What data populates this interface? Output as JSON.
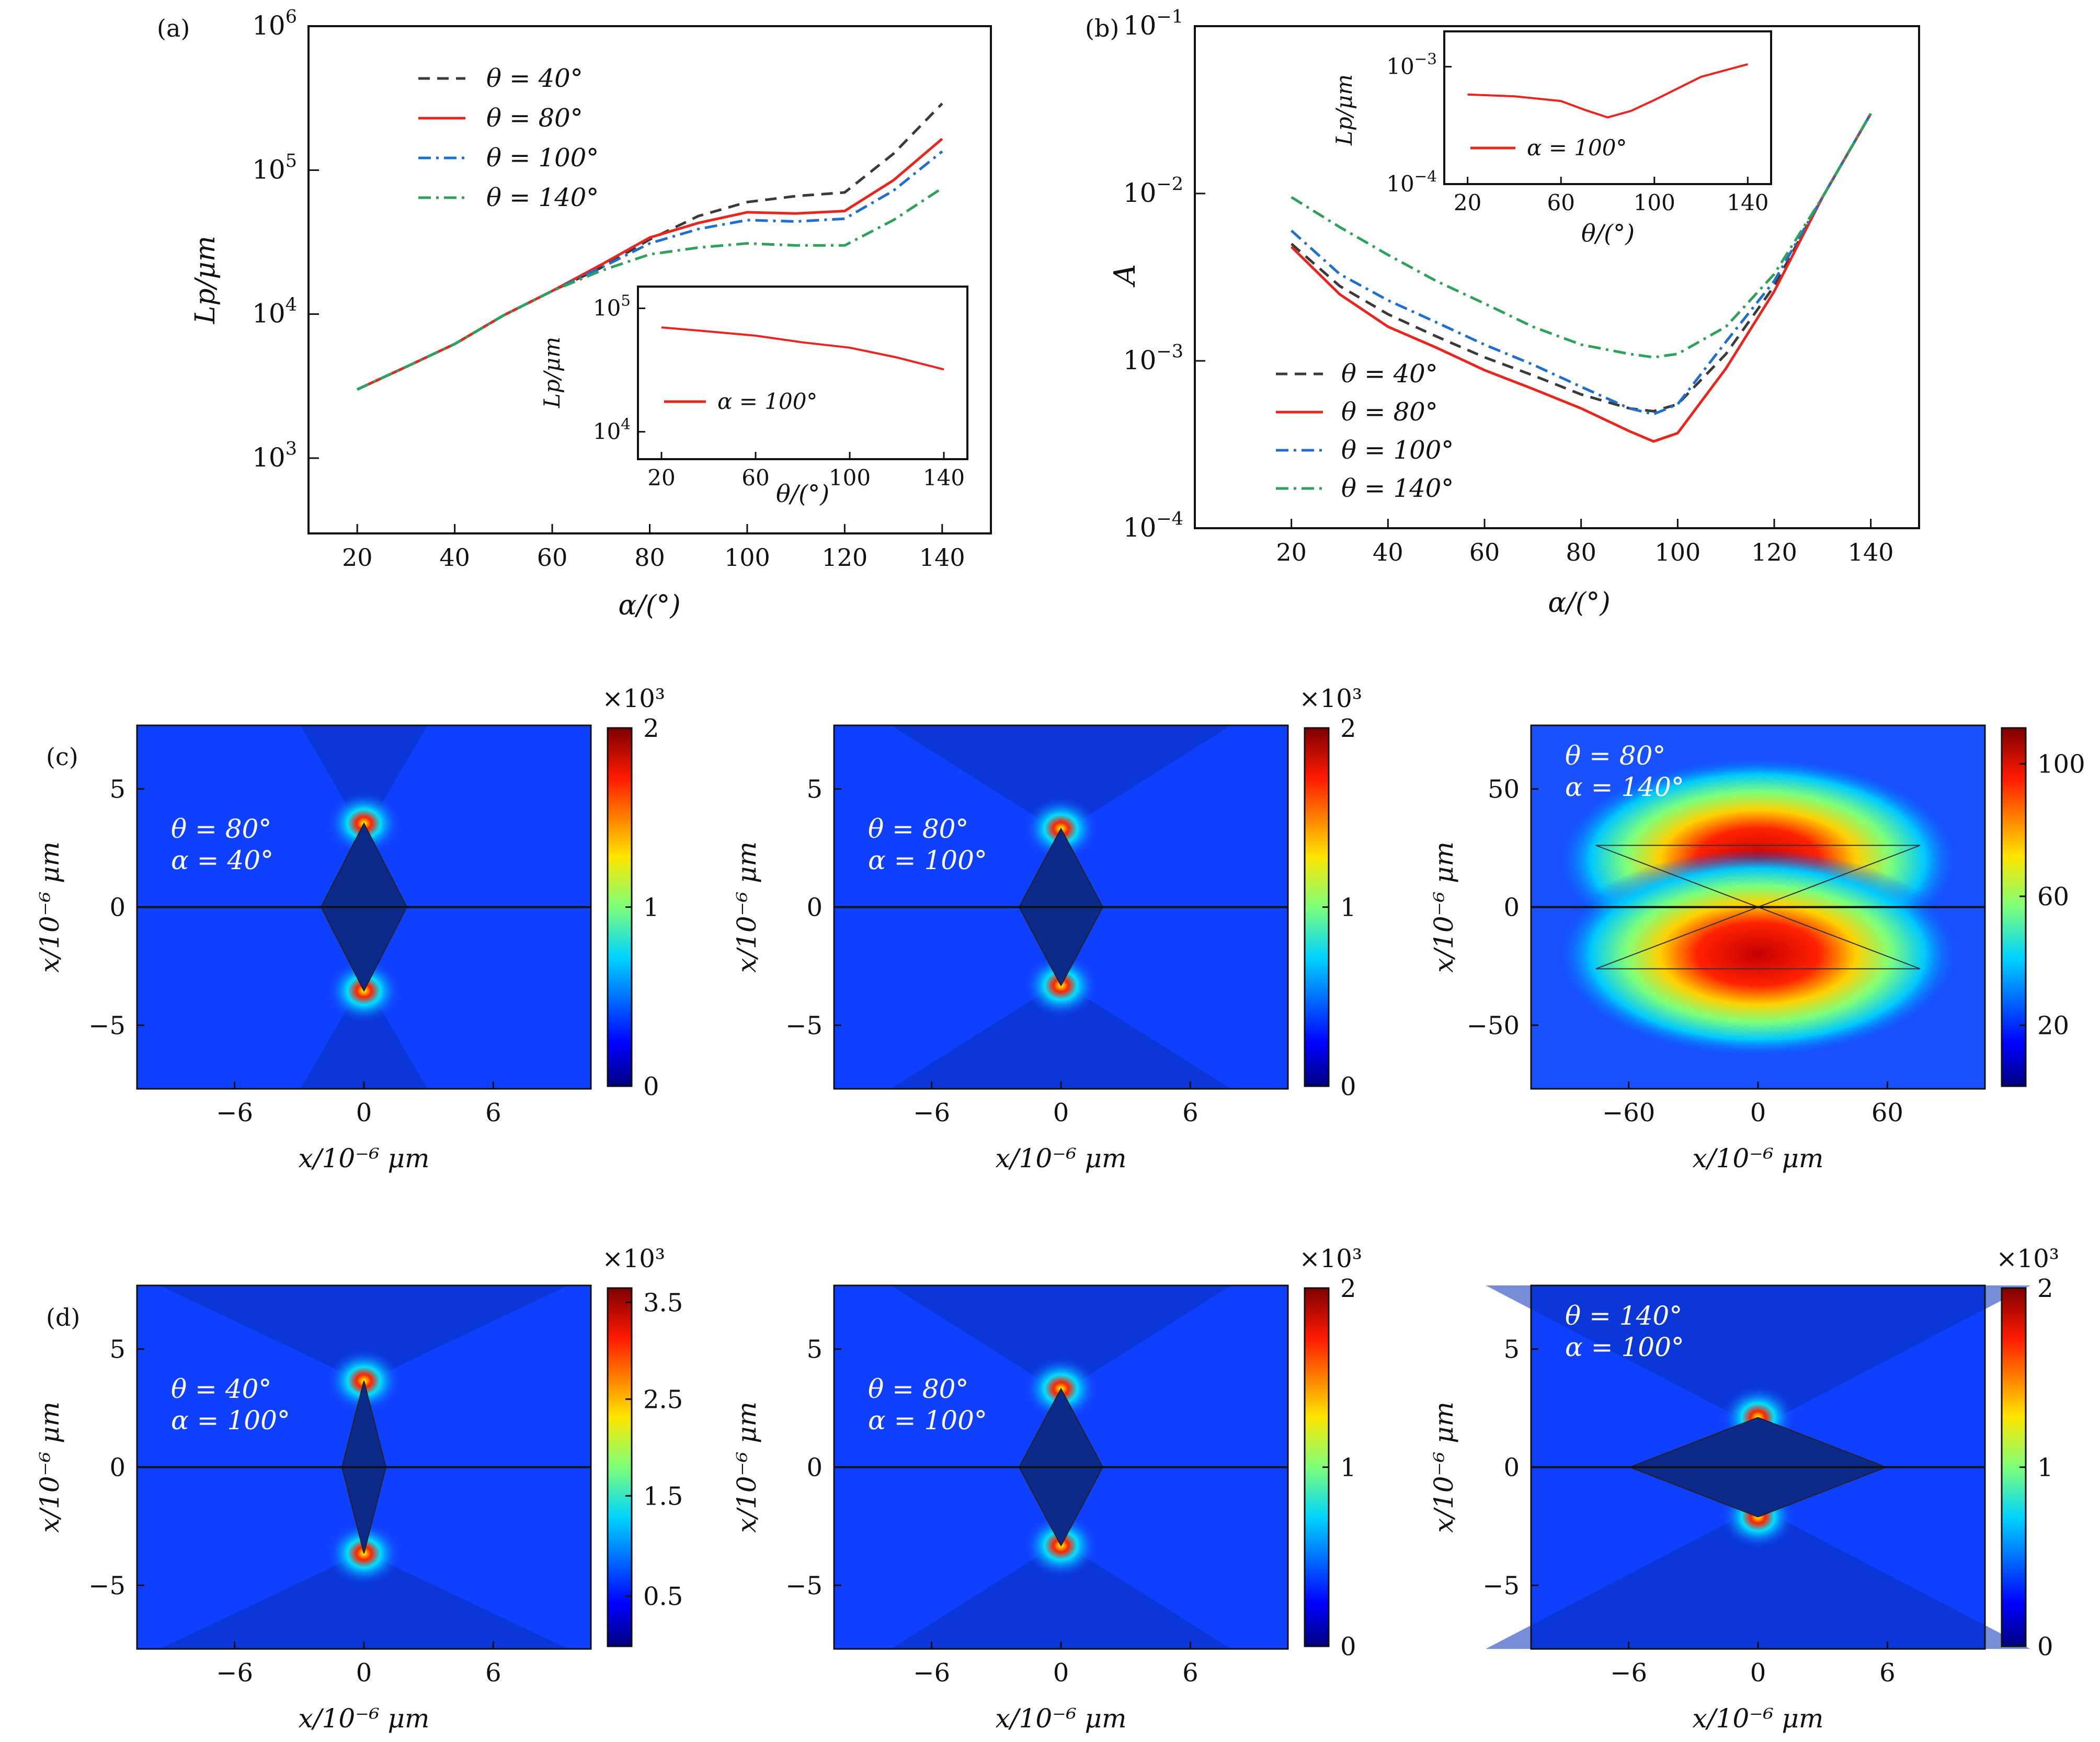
{
  "colors": {
    "theta40": "#3a3a3a",
    "theta80": "#e8261e",
    "theta100": "#1f6fd1",
    "theta140": "#2ea15b",
    "bg_field": "#1040ff",
    "dark_region": "#0a2fb8",
    "hot": "#ff2200"
  },
  "panel_a": {
    "label": "(a)",
    "xlabel": "α/(°)",
    "ylabel": "Lp/μm",
    "xticks": [
      "20",
      "40",
      "60",
      "80",
      "100",
      "120",
      "140"
    ],
    "yticks": [
      "10^3",
      "10^4",
      "10^5",
      "10^6"
    ],
    "legend": [
      "θ = 40°",
      "θ = 80°",
      "θ = 100°",
      "θ = 140°"
    ],
    "inset": {
      "xlabel": "θ/(°)",
      "ylabel": "Lp/μm",
      "xticks": [
        "20",
        "60",
        "100",
        "140"
      ],
      "yticks": [
        "10^4",
        "10^5"
      ],
      "legend": "α = 100°"
    }
  },
  "panel_b": {
    "label": "(b)",
    "xlabel": "α/(°)",
    "ylabel": "A",
    "xticks": [
      "20",
      "40",
      "60",
      "80",
      "100",
      "120",
      "140"
    ],
    "yticks": [
      "10^-4",
      "10^-3",
      "10^-2",
      "10^-1"
    ],
    "legend": [
      "θ = 40°",
      "θ = 80°",
      "θ = 100°",
      "θ = 140°"
    ],
    "inset": {
      "xlabel": "θ/(°)",
      "ylabel": "Lp/μm",
      "xticks": [
        "20",
        "60",
        "100",
        "140"
      ],
      "yticks": [
        "10^-4",
        "10^-3"
      ],
      "legend": "α = 100°"
    }
  },
  "maps": {
    "c_label": "(c)",
    "d_label": "(d)",
    "xlabel": "x/10⁻⁶ μm",
    "ylabel": "x/10⁻⁶ μm",
    "multiplier": "×10³",
    "c1": {
      "line1": "θ = 80°",
      "line2": "α = 40°",
      "xticks": [
        "−6",
        "0",
        "6"
      ],
      "yticks": [
        "5",
        "0",
        "−5"
      ],
      "cticks": [
        "2",
        "1",
        "0"
      ]
    },
    "c2": {
      "line1": "θ = 80°",
      "line2": "α = 100°",
      "xticks": [
        "−6",
        "0",
        "6"
      ],
      "yticks": [
        "5",
        "0",
        "−5"
      ],
      "cticks": [
        "2",
        "1",
        "0"
      ]
    },
    "c3": {
      "line1": "θ = 80°",
      "line2": "α = 140°",
      "xticks": [
        "−60",
        "0",
        "60"
      ],
      "yticks": [
        "50",
        "0",
        "−50"
      ],
      "cticks": [
        "100",
        "60",
        "20"
      ]
    },
    "d1": {
      "line1": "θ = 40°",
      "line2": "α = 100°",
      "xticks": [
        "−6",
        "0",
        "6"
      ],
      "yticks": [
        "5",
        "0",
        "−5"
      ],
      "cticks": [
        "3.5",
        "2.5",
        "1.5",
        "0.5"
      ]
    },
    "d2": {
      "line1": "θ = 80°",
      "line2": "α = 100°",
      "xticks": [
        "−6",
        "0",
        "6"
      ],
      "yticks": [
        "5",
        "0",
        "−5"
      ],
      "cticks": [
        "2",
        "1",
        "0"
      ]
    },
    "d3": {
      "line1": "θ = 140°",
      "line2": "α = 100°",
      "xticks": [
        "−6",
        "0",
        "6"
      ],
      "yticks": [
        "5",
        "0",
        "−5"
      ],
      "cticks": [
        "2",
        "1",
        "0"
      ]
    }
  },
  "chart_data": [
    {
      "type": "line",
      "panel": "a",
      "xlabel": "α/(°)",
      "ylabel": "Lp/μm",
      "yscale": "log",
      "xlim": [
        10,
        150
      ],
      "ylim": [
        300,
        1000000
      ],
      "x": [
        20,
        30,
        40,
        50,
        60,
        70,
        80,
        90,
        100,
        110,
        120,
        130,
        140
      ],
      "series": [
        {
          "name": "θ = 40°",
          "values": [
            3000,
            4300,
            6200,
            9800,
            14500,
            21000,
            33000,
            48000,
            60000,
            66000,
            70000,
            130000,
            290000
          ]
        },
        {
          "name": "θ = 80°",
          "values": [
            3000,
            4300,
            6200,
            9800,
            14500,
            22000,
            34000,
            43000,
            51000,
            50000,
            52000,
            85000,
            165000
          ]
        },
        {
          "name": "θ = 100°",
          "values": [
            3000,
            4300,
            6200,
            9800,
            14500,
            21000,
            31000,
            39000,
            45000,
            44000,
            46000,
            72000,
            135000
          ]
        },
        {
          "name": "θ = 140°",
          "values": [
            3000,
            4300,
            6200,
            9800,
            14500,
            20000,
            26000,
            29000,
            31000,
            30000,
            30000,
            45000,
            75000
          ]
        }
      ],
      "inset": {
        "xlabel": "θ/(°)",
        "ylabel": "Lp/μm",
        "yscale": "log",
        "xlim": [
          10,
          150
        ],
        "ylim": [
          6000,
          150000
        ],
        "series": [
          {
            "name": "α = 100°",
            "x": [
              20,
              40,
              60,
              80,
              100,
              120,
              140
            ],
            "values": [
              70000,
              65000,
              60000,
              53000,
              48000,
              40000,
              32000
            ]
          }
        ]
      }
    },
    {
      "type": "line",
      "panel": "b",
      "xlabel": "α/(°)",
      "ylabel": "A",
      "yscale": "log",
      "xlim": [
        0,
        150
      ],
      "ylim": [
        0.0001,
        0.1
      ],
      "x": [
        20,
        30,
        40,
        50,
        60,
        70,
        80,
        90,
        95,
        100,
        110,
        120,
        130,
        140
      ],
      "series": [
        {
          "name": "θ = 40°",
          "values": [
            0.005,
            0.0028,
            0.0019,
            0.0014,
            0.00105,
            0.00082,
            0.00063,
            0.00052,
            0.0005,
            0.00055,
            0.0011,
            0.0028,
            0.0095,
            0.03
          ]
        },
        {
          "name": "θ = 80°",
          "values": [
            0.0048,
            0.0025,
            0.0016,
            0.0012,
            0.00088,
            0.00068,
            0.00052,
            0.00038,
            0.00033,
            0.00037,
            0.0009,
            0.0026,
            0.0095,
            0.03
          ]
        },
        {
          "name": "θ = 100°",
          "values": [
            0.006,
            0.0033,
            0.0023,
            0.0017,
            0.00125,
            0.00095,
            0.0007,
            0.00052,
            0.00048,
            0.00055,
            0.0013,
            0.003,
            0.0095,
            0.03
          ]
        },
        {
          "name": "θ = 140°",
          "values": [
            0.0095,
            0.0063,
            0.0043,
            0.003,
            0.0022,
            0.0016,
            0.00125,
            0.0011,
            0.00105,
            0.0011,
            0.0016,
            0.0033,
            0.0095,
            0.03
          ]
        }
      ],
      "inset": {
        "xlabel": "θ/(°)",
        "ylabel": "Lp/μm",
        "yscale": "log",
        "xlim": [
          10,
          150
        ],
        "ylim": [
          0.0001,
          0.002
        ],
        "series": [
          {
            "name": "α = 100°",
            "x": [
              20,
              40,
              60,
              70,
              80,
              90,
              100,
              120,
              140
            ],
            "values": [
              0.00058,
              0.00056,
              0.00051,
              0.00043,
              0.00037,
              0.00042,
              0.00052,
              0.00082,
              0.00105
            ]
          }
        ]
      }
    }
  ]
}
